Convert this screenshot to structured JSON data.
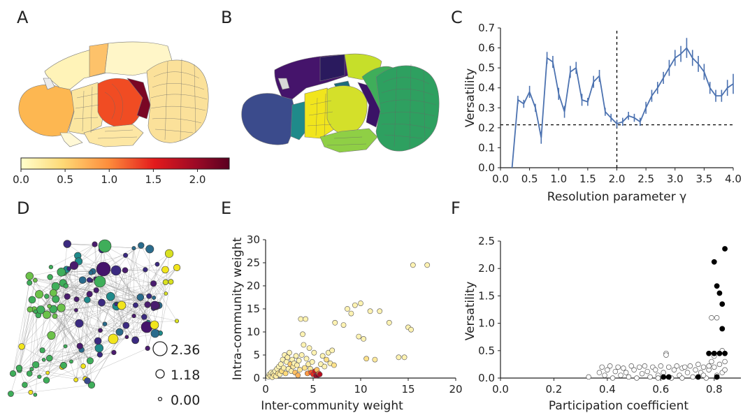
{
  "panels": {
    "A": "A",
    "B": "B",
    "C": "C",
    "D": "D",
    "E": "E",
    "F": "F"
  },
  "colors": {
    "line": "#4c72b0",
    "colormap": [
      "#ffffcc",
      "#fed976",
      "#fd8d3c",
      "#e31a1c",
      "#800026",
      "#67001f"
    ],
    "communities": [
      "#3b4b8c",
      "#2a1a5e",
      "#45146b",
      "#1f8a8a",
      "#1d6b7a",
      "#f1e51d",
      "#c6df2a",
      "#8fcf45",
      "#3fae5a",
      "#2ea060",
      "#4a1c6e"
    ]
  },
  "chart_data": [
    {
      "panel": "A",
      "type": "heatmap",
      "title": "",
      "colorbar": {
        "ticks": [
          "0.0",
          "0.5",
          "1.0",
          "1.5",
          "2.0"
        ],
        "range": [
          0,
          2.36
        ]
      }
    },
    {
      "panel": "B",
      "type": "heatmap",
      "title": ""
    },
    {
      "panel": "C",
      "type": "line",
      "title": "",
      "xlabel": "Resolution parameter γ",
      "ylabel": "Versatility",
      "xlim": [
        0,
        4
      ],
      "ylim": [
        0,
        0.7
      ],
      "xticks": [
        "0.0",
        "0.5",
        "1.0",
        "1.5",
        "2.0",
        "2.5",
        "3.0",
        "3.5",
        "4.0"
      ],
      "yticks": [
        "0.0",
        "0.1",
        "0.2",
        "0.3",
        "0.4",
        "0.5",
        "0.6",
        "0.7"
      ],
      "hline": 0.215,
      "vline": 2.0,
      "x": [
        0.2,
        0.3,
        0.4,
        0.5,
        0.6,
        0.7,
        0.8,
        0.9,
        1.0,
        1.1,
        1.2,
        1.3,
        1.4,
        1.5,
        1.6,
        1.7,
        1.8,
        1.9,
        2.0,
        2.1,
        2.2,
        2.3,
        2.4,
        2.5,
        2.6,
        2.7,
        2.8,
        2.9,
        3.0,
        3.1,
        3.2,
        3.3,
        3.4,
        3.5,
        3.6,
        3.7,
        3.8,
        3.9,
        4.0
      ],
      "y": [
        0.0,
        0.34,
        0.32,
        0.38,
        0.3,
        0.15,
        0.55,
        0.53,
        0.37,
        0.28,
        0.48,
        0.5,
        0.34,
        0.33,
        0.43,
        0.46,
        0.28,
        0.25,
        0.22,
        0.23,
        0.26,
        0.25,
        0.23,
        0.3,
        0.36,
        0.4,
        0.45,
        0.5,
        0.55,
        0.57,
        0.6,
        0.55,
        0.52,
        0.48,
        0.4,
        0.36,
        0.36,
        0.4,
        0.42
      ],
      "err": [
        0.0,
        0.02,
        0.02,
        0.03,
        0.02,
        0.03,
        0.03,
        0.03,
        0.03,
        0.03,
        0.03,
        0.03,
        0.03,
        0.02,
        0.03,
        0.03,
        0.02,
        0.02,
        0.02,
        0.02,
        0.02,
        0.02,
        0.02,
        0.03,
        0.03,
        0.03,
        0.03,
        0.04,
        0.04,
        0.04,
        0.05,
        0.04,
        0.04,
        0.04,
        0.03,
        0.03,
        0.03,
        0.04,
        0.05
      ]
    },
    {
      "panel": "D",
      "type": "scatter",
      "title": "",
      "size_legend": [
        "2.36",
        "1.18",
        "0.00"
      ]
    },
    {
      "panel": "E",
      "type": "scatter",
      "title": "",
      "xlabel": "Inter-community weight",
      "ylabel": "Intra-community weight",
      "xlim": [
        0,
        20
      ],
      "ylim": [
        0,
        30
      ],
      "xticks": [
        "0",
        "5",
        "10",
        "15",
        "20"
      ],
      "yticks": [
        "0",
        "5",
        "10",
        "15",
        "20",
        "25",
        "30"
      ],
      "points": [
        [
          0.3,
          0.3,
          0.1
        ],
        [
          0.4,
          0.8,
          0.1
        ],
        [
          0.5,
          0.5,
          0.3
        ],
        [
          0.6,
          1.2,
          0.1
        ],
        [
          0.7,
          0.2,
          0.2
        ],
        [
          0.8,
          1.0,
          0.1
        ],
        [
          0.9,
          0.6,
          0.4
        ],
        [
          1.0,
          1.5,
          0.1
        ],
        [
          1.1,
          0.4,
          0.2
        ],
        [
          1.2,
          2.0,
          0.1
        ],
        [
          1.3,
          1.0,
          0.5
        ],
        [
          1.4,
          2.5,
          0.1
        ],
        [
          1.5,
          0.8,
          0.2
        ],
        [
          1.6,
          3.0,
          0.1
        ],
        [
          1.7,
          1.5,
          0.6
        ],
        [
          1.8,
          4.0,
          0.1
        ],
        [
          1.9,
          2.2,
          0.2
        ],
        [
          2.0,
          5.0,
          0.1
        ],
        [
          2.1,
          1.0,
          0.7
        ],
        [
          2.2,
          3.5,
          0.1
        ],
        [
          2.3,
          4.5,
          0.2
        ],
        [
          2.4,
          2.0,
          0.1
        ],
        [
          2.5,
          5.5,
          0.1
        ],
        [
          2.6,
          3.0,
          0.8
        ],
        [
          2.7,
          1.5,
          0.2
        ],
        [
          2.8,
          4.0,
          0.1
        ],
        [
          2.9,
          2.5,
          0.3
        ],
        [
          3.0,
          3.2,
          0.1
        ],
        [
          3.1,
          1.2,
          0.9
        ],
        [
          3.2,
          4.8,
          0.1
        ],
        [
          3.3,
          2.8,
          0.2
        ],
        [
          3.4,
          0.6,
          1.0
        ],
        [
          3.5,
          3.8,
          0.1
        ],
        [
          3.6,
          1.8,
          0.4
        ],
        [
          3.7,
          12.8,
          0.1
        ],
        [
          3.8,
          5.0,
          0.1
        ],
        [
          3.9,
          9.5,
          0.1
        ],
        [
          4.0,
          7.2,
          0.1
        ],
        [
          4.1,
          2.2,
          0.5
        ],
        [
          4.2,
          12.8,
          0.1
        ],
        [
          4.3,
          4.2,
          0.1
        ],
        [
          4.4,
          1.0,
          1.2
        ],
        [
          4.5,
          3.0,
          0.2
        ],
        [
          4.6,
          6.5,
          0.1
        ],
        [
          4.7,
          2.0,
          0.3
        ],
        [
          4.8,
          1.2,
          1.6
        ],
        [
          4.9,
          3.5,
          0.1
        ],
        [
          5.0,
          0.8,
          1.8
        ],
        [
          5.1,
          5.5,
          0.1
        ],
        [
          5.2,
          1.5,
          2.0
        ],
        [
          5.3,
          0.5,
          2.2
        ],
        [
          5.4,
          1.8,
          0.9
        ],
        [
          5.5,
          0.6,
          2.36
        ],
        [
          5.6,
          1.0,
          1.4
        ],
        [
          5.7,
          0.8,
          2.1
        ],
        [
          5.8,
          3.0,
          0.1
        ],
        [
          6.0,
          4.8,
          0.1
        ],
        [
          6.2,
          2.5,
          0.1
        ],
        [
          6.4,
          4.0,
          0.6
        ],
        [
          6.6,
          5.5,
          0.1
        ],
        [
          6.8,
          3.2,
          0.2
        ],
        [
          7.0,
          6.0,
          0.1
        ],
        [
          7.2,
          2.8,
          0.5
        ],
        [
          7.3,
          12.0,
          0.1
        ],
        [
          8.2,
          11.5,
          0.1
        ],
        [
          8.6,
          15.0,
          0.1
        ],
        [
          9.0,
          14.0,
          0.1
        ],
        [
          9.4,
          15.8,
          0.1
        ],
        [
          9.8,
          9.0,
          0.1
        ],
        [
          10.0,
          16.2,
          0.1
        ],
        [
          10.3,
          8.5,
          0.1
        ],
        [
          10.6,
          4.2,
          0.5
        ],
        [
          11.0,
          14.5,
          0.1
        ],
        [
          11.5,
          4.0,
          0.3
        ],
        [
          12.0,
          14.5,
          0.1
        ],
        [
          13.0,
          12.0,
          0.1
        ],
        [
          14.0,
          4.5,
          0.1
        ],
        [
          14.6,
          4.5,
          0.1
        ],
        [
          15.0,
          11.0,
          0.1
        ],
        [
          15.3,
          10.5,
          0.1
        ],
        [
          15.5,
          24.5,
          0.1
        ],
        [
          17.0,
          24.5,
          0.1
        ]
      ]
    },
    {
      "panel": "F",
      "type": "scatter",
      "title": "",
      "xlabel": "Participation coefficient",
      "ylabel": "Versatility",
      "xlim": [
        0,
        0.9
      ],
      "ylim": [
        0,
        2.5
      ],
      "xticks": [
        "0.0",
        "0.2",
        "0.4",
        "0.6",
        "0.8"
      ],
      "yticks": [
        "0.0",
        "0.5",
        "1.0",
        "1.5",
        "2.0",
        "2.5"
      ],
      "open_points": [
        [
          0.33,
          0.02
        ],
        [
          0.37,
          0.1
        ],
        [
          0.38,
          0.2
        ],
        [
          0.39,
          0.05
        ],
        [
          0.4,
          0.15
        ],
        [
          0.41,
          0.22
        ],
        [
          0.42,
          0.0
        ],
        [
          0.43,
          0.12
        ],
        [
          0.44,
          0.2
        ],
        [
          0.45,
          0.05
        ],
        [
          0.46,
          0.18
        ],
        [
          0.47,
          0.1
        ],
        [
          0.48,
          0.02
        ],
        [
          0.49,
          0.22
        ],
        [
          0.5,
          0.15
        ],
        [
          0.51,
          0.0
        ],
        [
          0.52,
          0.2
        ],
        [
          0.53,
          0.08
        ],
        [
          0.54,
          0.22
        ],
        [
          0.55,
          0.12
        ],
        [
          0.56,
          0.02
        ],
        [
          0.57,
          0.2
        ],
        [
          0.58,
          0.15
        ],
        [
          0.59,
          0.05
        ],
        [
          0.6,
          0.22
        ],
        [
          0.61,
          0.1
        ],
        [
          0.62,
          0.45
        ],
        [
          0.62,
          0.42
        ],
        [
          0.63,
          0.2
        ],
        [
          0.64,
          0.0
        ],
        [
          0.65,
          0.15
        ],
        [
          0.66,
          0.22
        ],
        [
          0.67,
          0.05
        ],
        [
          0.68,
          0.18
        ],
        [
          0.69,
          0.2
        ],
        [
          0.7,
          0.1
        ],
        [
          0.71,
          0.22
        ],
        [
          0.72,
          0.02
        ],
        [
          0.73,
          0.15
        ],
        [
          0.74,
          0.25
        ],
        [
          0.75,
          0.1
        ],
        [
          0.76,
          0.2
        ],
        [
          0.77,
          0.0
        ],
        [
          0.78,
          0.15
        ],
        [
          0.79,
          0.3
        ],
        [
          0.79,
          1.1
        ],
        [
          0.8,
          0.2
        ],
        [
          0.81,
          1.1
        ],
        [
          0.81,
          0.05
        ],
        [
          0.82,
          0.45
        ],
        [
          0.82,
          0.25
        ],
        [
          0.83,
          0.5
        ],
        [
          0.83,
          0.1
        ],
        [
          0.84,
          0.3
        ],
        [
          0.78,
          0.22
        ],
        [
          0.8,
          0.4
        ],
        [
          0.84,
          0.15
        ],
        [
          0.59,
          0.0
        ],
        [
          0.68,
          0.0
        ],
        [
          0.76,
          0.05
        ]
      ],
      "filled_points": [
        [
          0.61,
          0.02
        ],
        [
          0.63,
          0.02
        ],
        [
          0.74,
          0.02
        ],
        [
          0.78,
          0.45
        ],
        [
          0.8,
          0.45
        ],
        [
          0.8,
          2.12
        ],
        [
          0.81,
          1.68
        ],
        [
          0.82,
          1.55
        ],
        [
          0.82,
          0.45
        ],
        [
          0.83,
          0.9
        ],
        [
          0.83,
          1.35
        ],
        [
          0.84,
          2.36
        ],
        [
          0.84,
          0.45
        ],
        [
          0.81,
          0.02
        ]
      ]
    }
  ]
}
